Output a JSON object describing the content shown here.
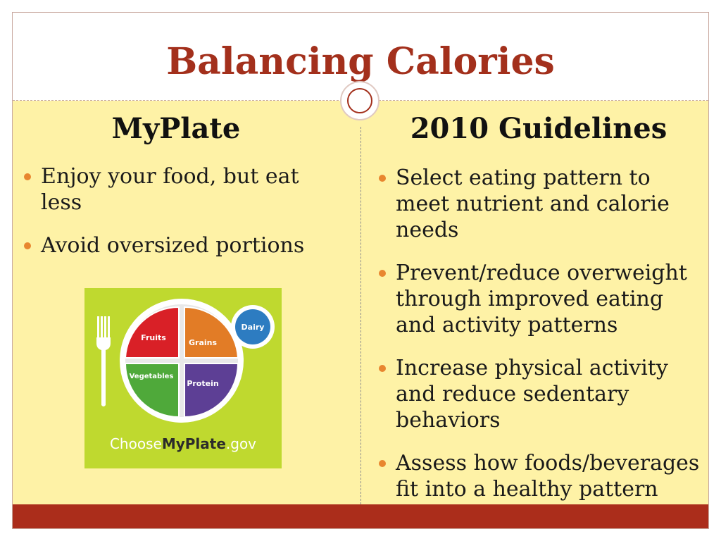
{
  "slide": {
    "title": "Balancing Calories",
    "accent_color": "#a3301c",
    "background_color": "#fef2a6",
    "bullet_color": "#e8862f"
  },
  "left_column": {
    "heading": "MyPlate",
    "bullets": [
      "Enjoy your food, but eat less",
      "Avoid oversized portions"
    ]
  },
  "right_column": {
    "heading": "2010 Guidelines",
    "bullets": [
      "Select eating pattern to meet nutrient and calorie needs",
      "Prevent/reduce overweight through improved eating and activity patterns",
      "Increase physical activity and reduce sedentary behaviors",
      "Assess how foods/beverages fit into a healthy pattern"
    ]
  },
  "logo": {
    "segments": {
      "fruits": "Fruits",
      "grains": "Grains",
      "vegetables": "Vegetables",
      "protein": "Protein",
      "dairy": "Dairy"
    },
    "wordmark_prefix": "Choose",
    "wordmark_brand": "MyPlate",
    "wordmark_suffix": ".gov"
  }
}
